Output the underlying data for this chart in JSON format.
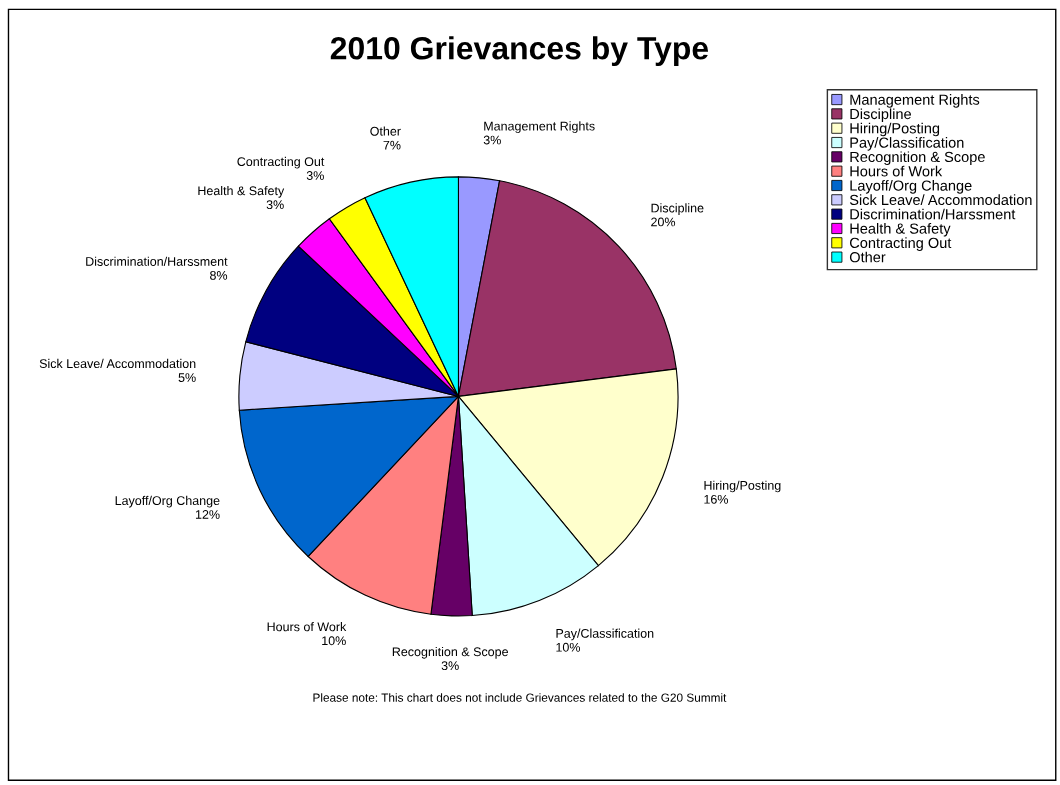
{
  "chart_data": {
    "type": "pie",
    "title": "2010 Grievances by Type",
    "categories": [
      "Management Rights",
      "Discipline",
      "Hiring/Posting",
      "Pay/Classification",
      "Recognition & Scope",
      "Hours of Work",
      "Layoff/Org Change",
      "Sick Leave/ Accommodation",
      "Discrimination/Harssment",
      "Health & Safety",
      "Contracting Out",
      "Other"
    ],
    "values": [
      3,
      20,
      16,
      10,
      3,
      10,
      12,
      5,
      8,
      3,
      3,
      7
    ],
    "colors": [
      "#9999ff",
      "#993366",
      "#ffffcc",
      "#ccffff",
      "#660066",
      "#ff8080",
      "#0066cc",
      "#ccccff",
      "#000080",
      "#ff00ff",
      "#ffff00",
      "#00ffff"
    ],
    "value_labels": [
      "3%",
      "20%",
      "16%",
      "10%",
      "3%",
      "10%",
      "12%",
      "5%",
      "8%",
      "3%",
      "3%",
      "7%"
    ],
    "legend": "top right",
    "annotations": [
      "Please note: This chart does not include Grievances related to the G20 Summit"
    ]
  }
}
